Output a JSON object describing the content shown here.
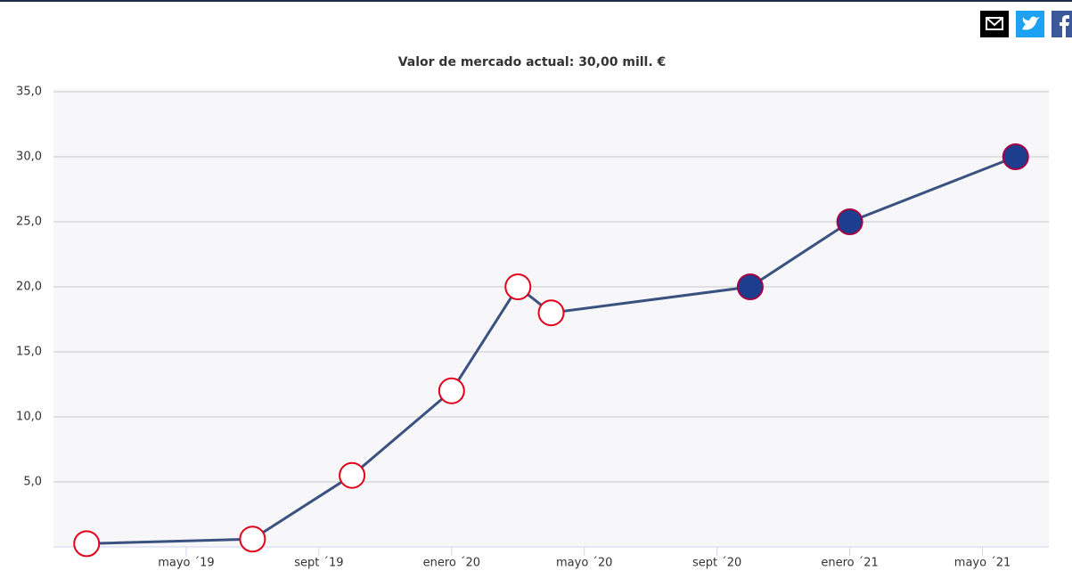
{
  "chart_data": {
    "type": "line",
    "title": "Valor de mercado actual: 30,00 mill. €",
    "x": [
      "2019-02",
      "2019-07",
      "2019-10",
      "2020-01",
      "2020-03",
      "2020-04",
      "2020-10",
      "2021-01",
      "2021-06"
    ],
    "series": [
      {
        "color": "#3b5280",
        "values": [
          0.25,
          0.6,
          5.5,
          12,
          20,
          18,
          20,
          25,
          30
        ],
        "marker_colors": [
          "#e2001a",
          "#e2001a",
          "#e2001a",
          "#e2001a",
          "#e2001a",
          "#e2001a",
          "#a50044",
          "#a50044",
          "#a50044"
        ]
      }
    ],
    "xlim": [
      "2019-01",
      "2021-07"
    ],
    "xticks": [
      {
        "value": "2019-05",
        "label": "mayo ´19"
      },
      {
        "value": "2019-09",
        "label": "sept ´19"
      },
      {
        "value": "2020-01",
        "label": "enero ´20"
      },
      {
        "value": "2020-05",
        "label": "mayo ´20"
      },
      {
        "value": "2020-09",
        "label": "sept ´20"
      },
      {
        "value": "2021-01",
        "label": "enero ´21"
      },
      {
        "value": "2021-05",
        "label": "mayo ´21"
      }
    ],
    "ylim": [
      0,
      35
    ],
    "yticks": [
      {
        "value": 5,
        "label": "5,0"
      },
      {
        "value": 10,
        "label": "10,0"
      },
      {
        "value": 15,
        "label": "15,0"
      },
      {
        "value": 20,
        "label": "20,0"
      },
      {
        "value": 25,
        "label": "25,0"
      },
      {
        "value": 30,
        "label": "30,0"
      },
      {
        "value": 35,
        "label": "35,0"
      }
    ],
    "grid": true
  }
}
